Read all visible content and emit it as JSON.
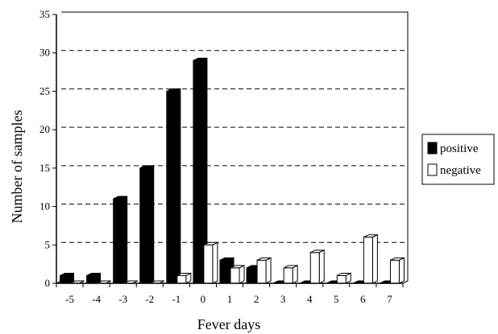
{
  "chart_data": {
    "type": "bar",
    "title": "",
    "xlabel": "Fever days",
    "ylabel": "Number of samples",
    "categories": [
      "-5",
      "-4",
      "-3",
      "-2",
      "-1",
      "0",
      "1",
      "2",
      "3",
      "4",
      "5",
      "6",
      "7"
    ],
    "series": [
      {
        "name": "positive",
        "values": [
          1,
          1,
          11,
          15,
          25,
          29,
          3,
          2,
          0,
          0,
          0,
          0,
          0
        ],
        "color": "#000000"
      },
      {
        "name": "negative",
        "values": [
          0,
          0,
          0,
          0,
          1,
          5,
          2,
          3,
          2,
          4,
          1,
          6,
          3
        ],
        "color": "#ffffff"
      }
    ],
    "y_ticks": [
      "0",
      "5",
      "10",
      "15",
      "20",
      "25",
      "30",
      "35"
    ],
    "ylim": [
      0,
      35
    ],
    "grid": "horizontal-dashed",
    "legend": "right"
  }
}
